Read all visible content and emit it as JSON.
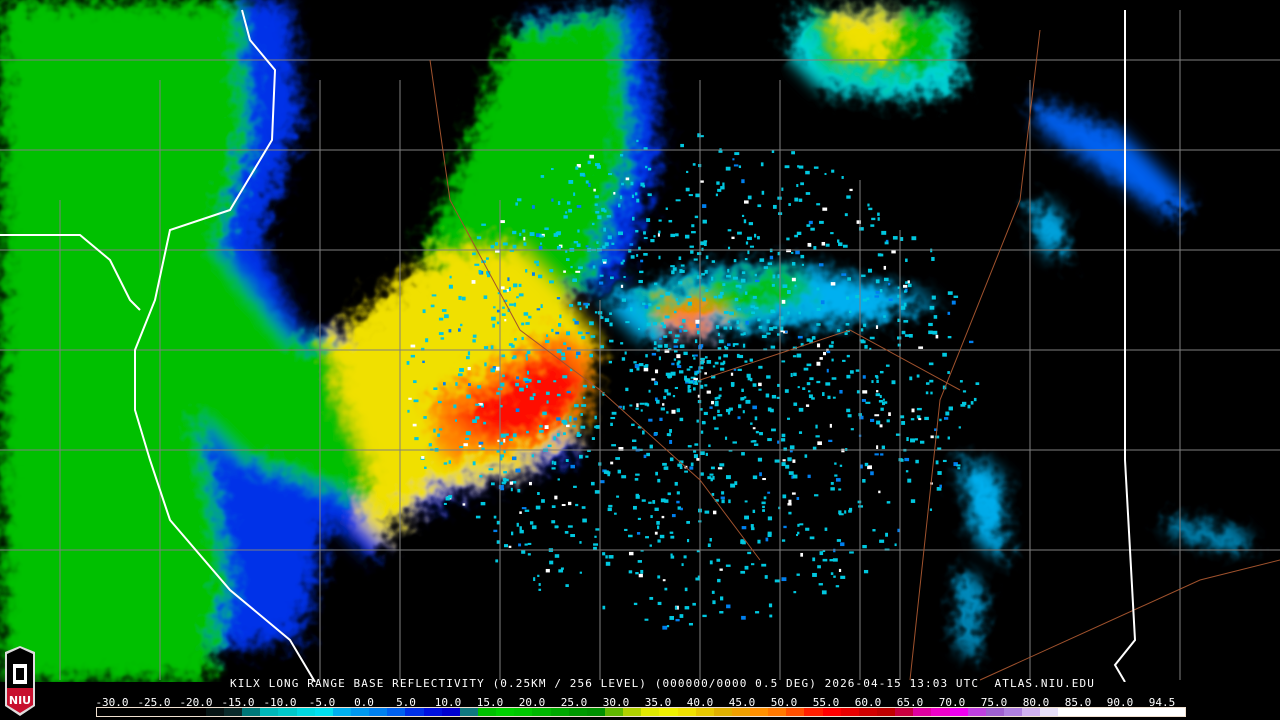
{
  "product": {
    "caption": "KILX LONG RANGE BASE REFLECTIVITY (0.25KM / 256 LEVEL) (000000/0000 0.5 DEG) 2026-04-15 13:03 UTC  ATLAS.NIU.EDU",
    "station": "KILX",
    "timestamp": "2026-04-15 13:03 UTC",
    "tilt": "0.5 DEG",
    "source": "ATLAS.NIU.EDU"
  },
  "logo": {
    "text": "NIU",
    "colors": {
      "top": "#000000",
      "bottom": "#c8102e"
    }
  },
  "legend": {
    "labels": [
      "-30.0",
      "-25.0",
      "-20.0",
      "-15.0",
      "-10.0",
      "-5.0",
      "0.0",
      "5.0",
      "10.0",
      "15.0",
      "20.0",
      "25.0",
      "30.0",
      "35.0",
      "40.0",
      "45.0",
      "50.0",
      "55.0",
      "60.0",
      "65.0",
      "70.0",
      "75.0",
      "80.0",
      "85.0",
      "90.0",
      "94.5"
    ],
    "colors": [
      "#000000",
      "#000000",
      "#000000",
      "#000000",
      "#000000",
      "#000000",
      "#061414",
      "#0a2a2a",
      "#007878",
      "#00b8b8",
      "#00c8c8",
      "#00d8e0",
      "#00e0f0",
      "#00b0f0",
      "#0098f0",
      "#0080f0",
      "#0060f0",
      "#0030e8",
      "#0010e0",
      "#0000d0",
      "#107880",
      "#00c000",
      "#00d000",
      "#00c800",
      "#00b800",
      "#00a800",
      "#009800",
      "#009000",
      "#60b800",
      "#b0d000",
      "#e0e800",
      "#f0f000",
      "#f0e000",
      "#e8c800",
      "#e0b000",
      "#f0a000",
      "#ff9000",
      "#ff7800",
      "#ff5000",
      "#ff2000",
      "#ff0000",
      "#e80000",
      "#d00000",
      "#c00000",
      "#c80040",
      "#e000a0",
      "#f000c8",
      "#f000f0",
      "#c040e0",
      "#a060d0",
      "#b080e0",
      "#d0b0f0",
      "#e8e0f8",
      "#ffffff",
      "#ffffff",
      "#ffffff",
      "#ffffff",
      "#ffffff",
      "#ffffff",
      "#ffffff"
    ]
  },
  "map_colors": {
    "state_border": "#ffffff",
    "county_border": "#808080",
    "highway": "#a0522d",
    "background": "#000000"
  }
}
